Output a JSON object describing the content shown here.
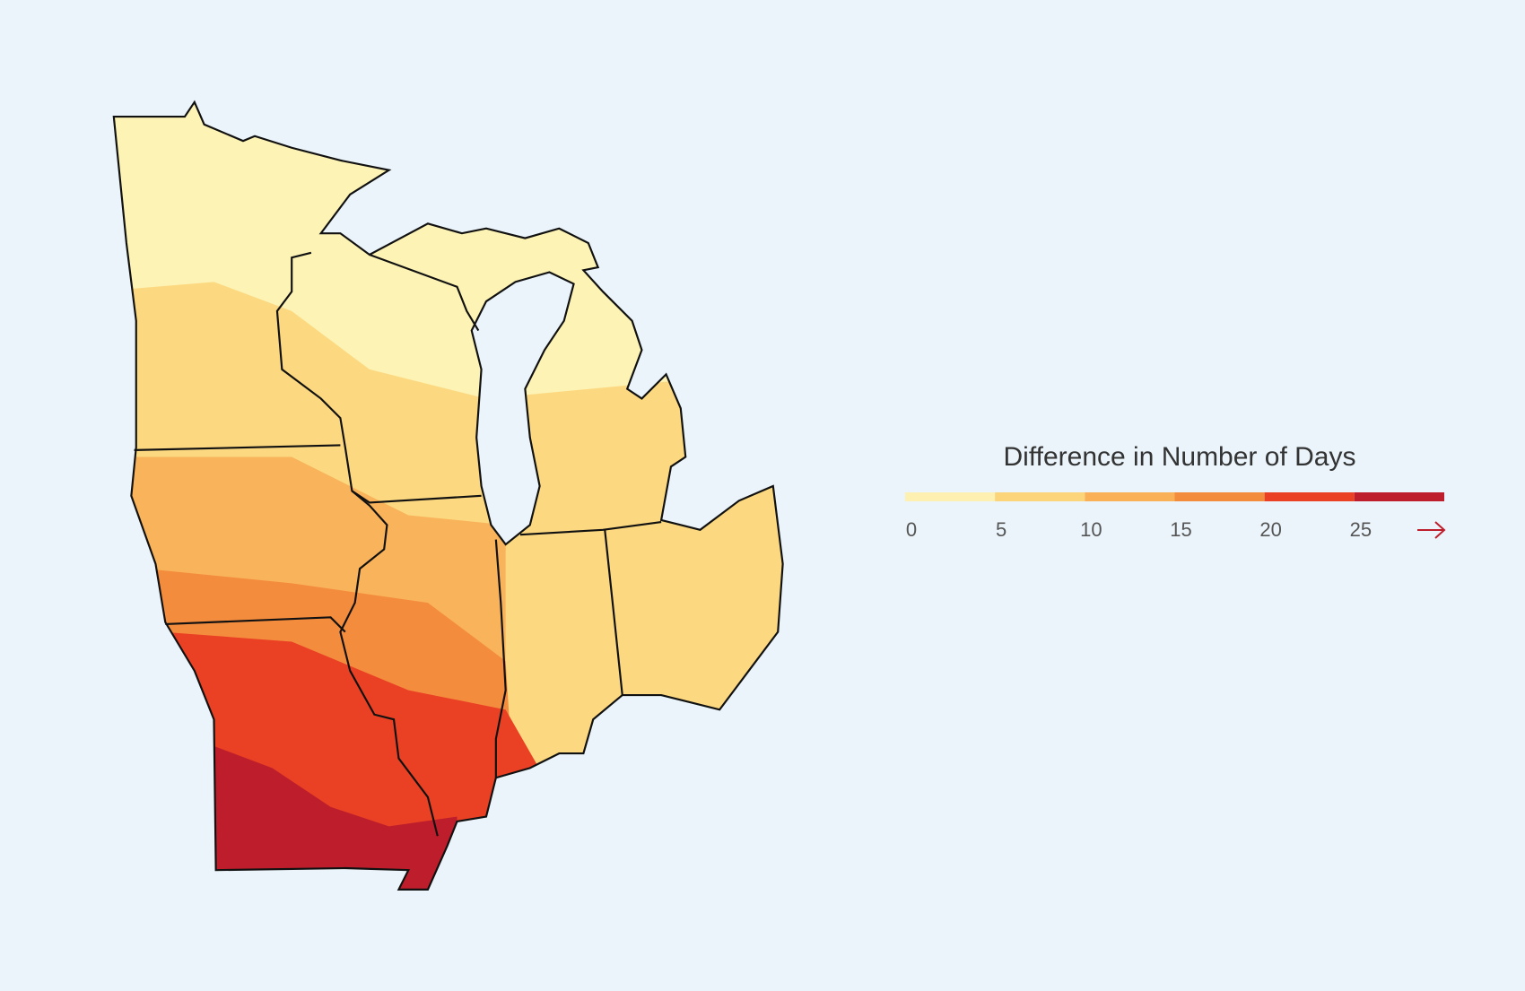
{
  "legend": {
    "title": "Difference in Number of Days",
    "ticks": [
      0,
      5,
      10,
      15,
      20,
      25
    ],
    "colors": [
      "#fdf0b0",
      "#fcd57a",
      "#f9b057",
      "#f48c3e",
      "#ea4125",
      "#be1e2b"
    ]
  }
}
